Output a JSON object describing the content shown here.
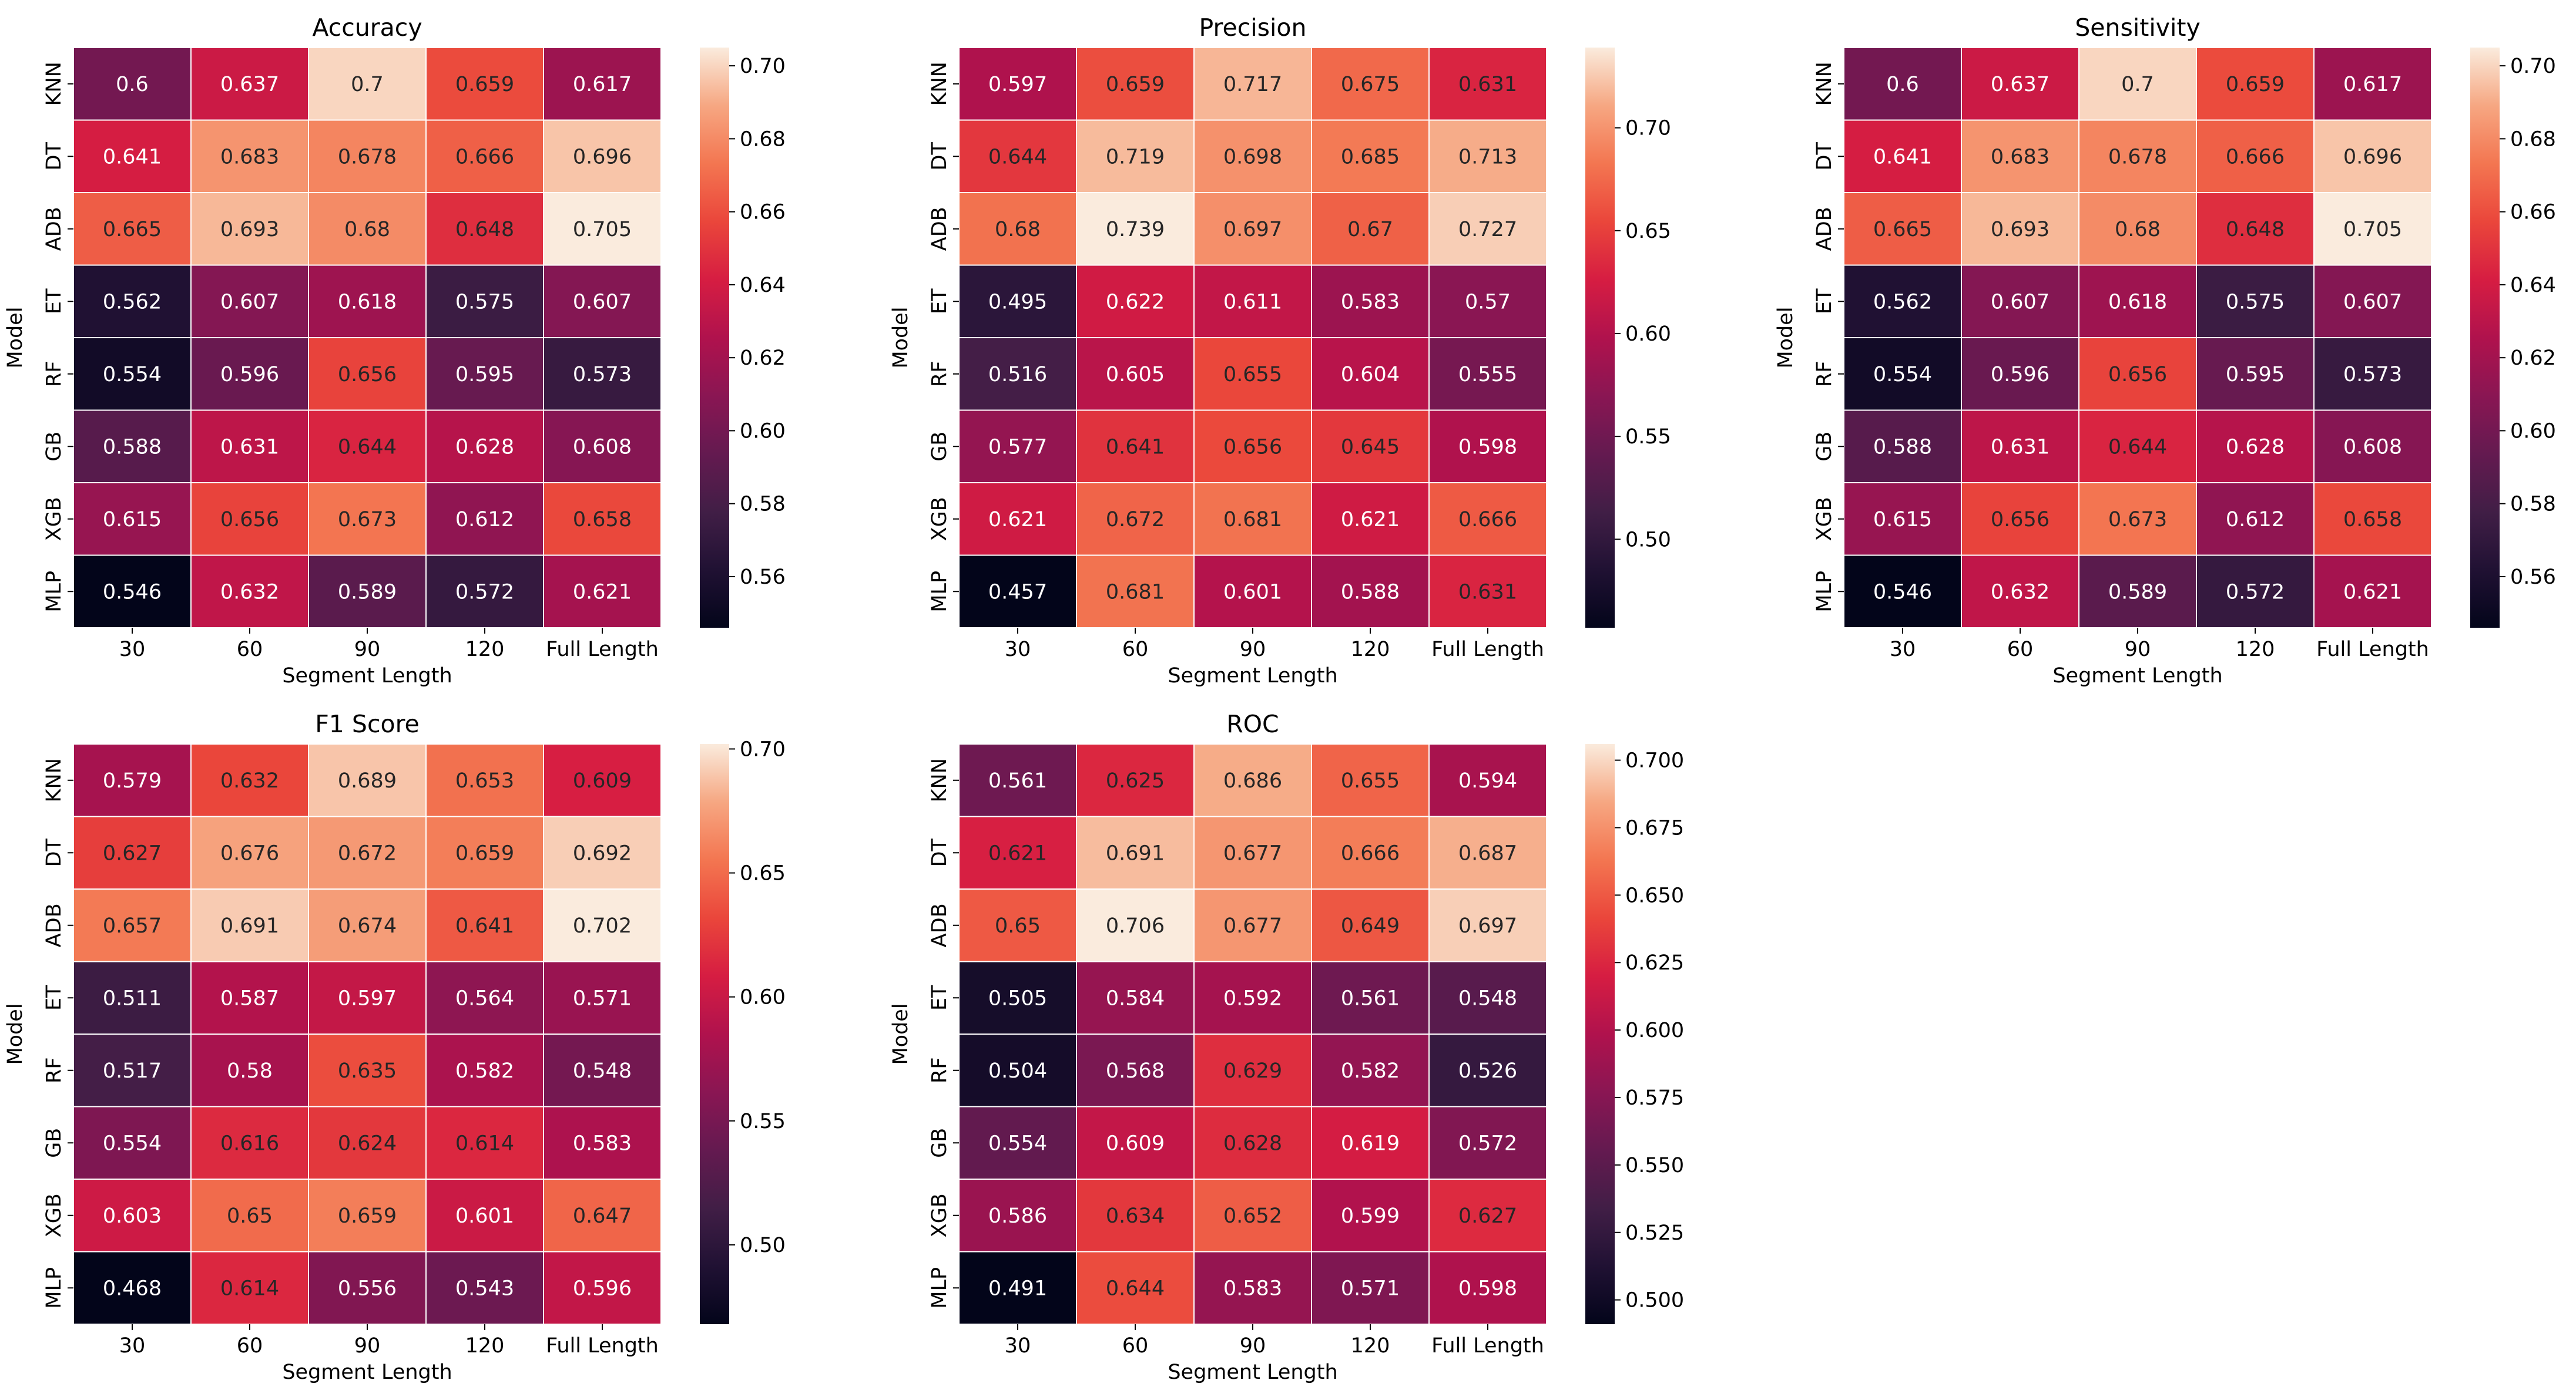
{
  "chart_data": [
    {
      "type": "heatmap",
      "title": "Accuracy",
      "xlabel": "Segment Length",
      "ylabel": "Model",
      "x_categories": [
        "30",
        "60",
        "90",
        "120",
        "Full Length"
      ],
      "y_categories": [
        "KNN",
        "DT",
        "ADB",
        "ET",
        "RF",
        "GB",
        "XGB",
        "MLP"
      ],
      "values": [
        [
          0.6,
          0.637,
          0.7,
          0.659,
          0.617
        ],
        [
          0.641,
          0.683,
          0.678,
          0.666,
          0.696
        ],
        [
          0.665,
          0.693,
          0.68,
          0.648,
          0.705
        ],
        [
          0.562,
          0.607,
          0.618,
          0.575,
          0.607
        ],
        [
          0.554,
          0.596,
          0.656,
          0.595,
          0.573
        ],
        [
          0.588,
          0.631,
          0.644,
          0.628,
          0.608
        ],
        [
          0.615,
          0.656,
          0.673,
          0.612,
          0.658
        ],
        [
          0.546,
          0.632,
          0.589,
          0.572,
          0.621
        ]
      ],
      "cell_labels": [
        [
          "0.6",
          "0.637",
          "0.7",
          "0.659",
          "0.617"
        ],
        [
          "0.641",
          "0.683",
          "0.678",
          "0.666",
          "0.696"
        ],
        [
          "0.665",
          "0.693",
          "0.68",
          "0.648",
          "0.705"
        ],
        [
          "0.562",
          "0.607",
          "0.618",
          "0.575",
          "0.607"
        ],
        [
          "0.554",
          "0.596",
          "0.656",
          "0.595",
          "0.573"
        ],
        [
          "0.588",
          "0.631",
          "0.644",
          "0.628",
          "0.608"
        ],
        [
          "0.615",
          "0.656",
          "0.673",
          "0.612",
          "0.658"
        ],
        [
          "0.546",
          "0.632",
          "0.589",
          "0.572",
          "0.621"
        ]
      ],
      "vmin": 0.546,
      "vmax": 0.705,
      "colorbar_ticks": [
        "0.56",
        "0.58",
        "0.60",
        "0.62",
        "0.64",
        "0.66",
        "0.68",
        "0.70"
      ],
      "colormap": "rocket"
    },
    {
      "type": "heatmap",
      "title": "Precision",
      "xlabel": "Segment Length",
      "ylabel": "Model",
      "x_categories": [
        "30",
        "60",
        "90",
        "120",
        "Full Length"
      ],
      "y_categories": [
        "KNN",
        "DT",
        "ADB",
        "ET",
        "RF",
        "GB",
        "XGB",
        "MLP"
      ],
      "values": [
        [
          0.597,
          0.659,
          0.717,
          0.675,
          0.631
        ],
        [
          0.644,
          0.719,
          0.698,
          0.685,
          0.713
        ],
        [
          0.68,
          0.739,
          0.697,
          0.67,
          0.727
        ],
        [
          0.495,
          0.622,
          0.611,
          0.583,
          0.57
        ],
        [
          0.516,
          0.605,
          0.655,
          0.604,
          0.555
        ],
        [
          0.577,
          0.641,
          0.656,
          0.645,
          0.598
        ],
        [
          0.621,
          0.672,
          0.681,
          0.621,
          0.666
        ],
        [
          0.457,
          0.681,
          0.601,
          0.588,
          0.631
        ]
      ],
      "cell_labels": [
        [
          "0.597",
          "0.659",
          "0.717",
          "0.675",
          "0.631"
        ],
        [
          "0.644",
          "0.719",
          "0.698",
          "0.685",
          "0.713"
        ],
        [
          "0.68",
          "0.739",
          "0.697",
          "0.67",
          "0.727"
        ],
        [
          "0.495",
          "0.622",
          "0.611",
          "0.583",
          "0.57"
        ],
        [
          "0.516",
          "0.605",
          "0.655",
          "0.604",
          "0.555"
        ],
        [
          "0.577",
          "0.641",
          "0.656",
          "0.645",
          "0.598"
        ],
        [
          "0.621",
          "0.672",
          "0.681",
          "0.621",
          "0.666"
        ],
        [
          "0.457",
          "0.681",
          "0.601",
          "0.588",
          "0.631"
        ]
      ],
      "vmin": 0.457,
      "vmax": 0.739,
      "colorbar_ticks": [
        "0.50",
        "0.55",
        "0.60",
        "0.65",
        "0.70"
      ],
      "colormap": "rocket"
    },
    {
      "type": "heatmap",
      "title": "Sensitivity",
      "xlabel": "Segment Length",
      "ylabel": "Model",
      "x_categories": [
        "30",
        "60",
        "90",
        "120",
        "Full Length"
      ],
      "y_categories": [
        "KNN",
        "DT",
        "ADB",
        "ET",
        "RF",
        "GB",
        "XGB",
        "MLP"
      ],
      "values": [
        [
          0.6,
          0.637,
          0.7,
          0.659,
          0.617
        ],
        [
          0.641,
          0.683,
          0.678,
          0.666,
          0.696
        ],
        [
          0.665,
          0.693,
          0.68,
          0.648,
          0.705
        ],
        [
          0.562,
          0.607,
          0.618,
          0.575,
          0.607
        ],
        [
          0.554,
          0.596,
          0.656,
          0.595,
          0.573
        ],
        [
          0.588,
          0.631,
          0.644,
          0.628,
          0.608
        ],
        [
          0.615,
          0.656,
          0.673,
          0.612,
          0.658
        ],
        [
          0.546,
          0.632,
          0.589,
          0.572,
          0.621
        ]
      ],
      "cell_labels": [
        [
          "0.6",
          "0.637",
          "0.7",
          "0.659",
          "0.617"
        ],
        [
          "0.641",
          "0.683",
          "0.678",
          "0.666",
          "0.696"
        ],
        [
          "0.665",
          "0.693",
          "0.68",
          "0.648",
          "0.705"
        ],
        [
          "0.562",
          "0.607",
          "0.618",
          "0.575",
          "0.607"
        ],
        [
          "0.554",
          "0.596",
          "0.656",
          "0.595",
          "0.573"
        ],
        [
          "0.588",
          "0.631",
          "0.644",
          "0.628",
          "0.608"
        ],
        [
          "0.615",
          "0.656",
          "0.673",
          "0.612",
          "0.658"
        ],
        [
          "0.546",
          "0.632",
          "0.589",
          "0.572",
          "0.621"
        ]
      ],
      "vmin": 0.546,
      "vmax": 0.705,
      "colorbar_ticks": [
        "0.56",
        "0.58",
        "0.60",
        "0.62",
        "0.64",
        "0.66",
        "0.68",
        "0.70"
      ],
      "colormap": "rocket"
    },
    {
      "type": "heatmap",
      "title": "F1 Score",
      "xlabel": "Segment Length",
      "ylabel": "Model",
      "x_categories": [
        "30",
        "60",
        "90",
        "120",
        "Full Length"
      ],
      "y_categories": [
        "KNN",
        "DT",
        "ADB",
        "ET",
        "RF",
        "GB",
        "XGB",
        "MLP"
      ],
      "values": [
        [
          0.579,
          0.632,
          0.689,
          0.653,
          0.609
        ],
        [
          0.627,
          0.676,
          0.672,
          0.659,
          0.692
        ],
        [
          0.657,
          0.691,
          0.674,
          0.641,
          0.702
        ],
        [
          0.511,
          0.587,
          0.597,
          0.564,
          0.571
        ],
        [
          0.517,
          0.58,
          0.635,
          0.582,
          0.548
        ],
        [
          0.554,
          0.616,
          0.624,
          0.614,
          0.583
        ],
        [
          0.603,
          0.65,
          0.659,
          0.601,
          0.647
        ],
        [
          0.468,
          0.614,
          0.556,
          0.543,
          0.596
        ]
      ],
      "cell_labels": [
        [
          "0.579",
          "0.632",
          "0.689",
          "0.653",
          "0.609"
        ],
        [
          "0.627",
          "0.676",
          "0.672",
          "0.659",
          "0.692"
        ],
        [
          "0.657",
          "0.691",
          "0.674",
          "0.641",
          "0.702"
        ],
        [
          "0.511",
          "0.587",
          "0.597",
          "0.564",
          "0.571"
        ],
        [
          "0.517",
          "0.58",
          "0.635",
          "0.582",
          "0.548"
        ],
        [
          "0.554",
          "0.616",
          "0.624",
          "0.614",
          "0.583"
        ],
        [
          "0.603",
          "0.65",
          "0.659",
          "0.601",
          "0.647"
        ],
        [
          "0.468",
          "0.614",
          "0.556",
          "0.543",
          "0.596"
        ]
      ],
      "vmin": 0.468,
      "vmax": 0.702,
      "colorbar_ticks": [
        "0.50",
        "0.55",
        "0.60",
        "0.65",
        "0.70"
      ],
      "colormap": "rocket"
    },
    {
      "type": "heatmap",
      "title": "ROC",
      "xlabel": "Segment Length",
      "ylabel": "Model",
      "x_categories": [
        "30",
        "60",
        "90",
        "120",
        "Full Length"
      ],
      "y_categories": [
        "KNN",
        "DT",
        "ADB",
        "ET",
        "RF",
        "GB",
        "XGB",
        "MLP"
      ],
      "values": [
        [
          0.561,
          0.625,
          0.686,
          0.655,
          0.594
        ],
        [
          0.621,
          0.691,
          0.677,
          0.666,
          0.687
        ],
        [
          0.65,
          0.706,
          0.677,
          0.649,
          0.697
        ],
        [
          0.505,
          0.584,
          0.592,
          0.561,
          0.548
        ],
        [
          0.504,
          0.568,
          0.629,
          0.582,
          0.526
        ],
        [
          0.554,
          0.609,
          0.628,
          0.619,
          0.572
        ],
        [
          0.586,
          0.634,
          0.652,
          0.599,
          0.627
        ],
        [
          0.491,
          0.644,
          0.583,
          0.571,
          0.598
        ]
      ],
      "cell_labels": [
        [
          "0.561",
          "0.625",
          "0.686",
          "0.655",
          "0.594"
        ],
        [
          "0.621",
          "0.691",
          "0.677",
          "0.666",
          "0.687"
        ],
        [
          "0.65",
          "0.706",
          "0.677",
          "0.649",
          "0.697"
        ],
        [
          "0.505",
          "0.584",
          "0.592",
          "0.561",
          "0.548"
        ],
        [
          "0.504",
          "0.568",
          "0.629",
          "0.582",
          "0.526"
        ],
        [
          "0.554",
          "0.609",
          "0.628",
          "0.619",
          "0.572"
        ],
        [
          "0.586",
          "0.634",
          "0.652",
          "0.599",
          "0.627"
        ],
        [
          "0.491",
          "0.644",
          "0.583",
          "0.571",
          "0.598"
        ]
      ],
      "vmin": 0.491,
      "vmax": 0.706,
      "colorbar_ticks": [
        "0.500",
        "0.525",
        "0.550",
        "0.575",
        "0.600",
        "0.625",
        "0.650",
        "0.675",
        "0.700"
      ],
      "colormap": "rocket"
    }
  ]
}
